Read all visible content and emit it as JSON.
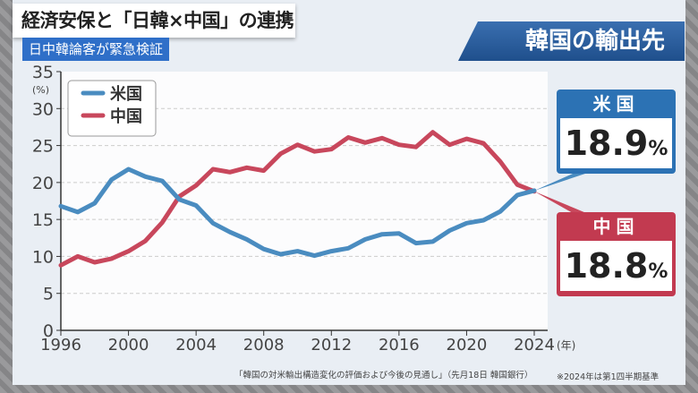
{
  "header": {
    "title": "経済安保と「日韓×中国」の連携",
    "subtitle": "日中韓論客が緊急検証",
    "panel_title": "韓国の輸出先"
  },
  "callouts": {
    "us": {
      "label": "米国",
      "value": "18.9",
      "unit": "%"
    },
    "china": {
      "label": "中国",
      "value": "18.8",
      "unit": "%"
    }
  },
  "footer": {
    "source": "「韓国の対米輸出構造変化の評価および今後の見通し」（先月18日 韓国銀行）",
    "note": "※2024年は第1四半期基準"
  },
  "colors": {
    "us": "#4a8cc0",
    "china": "#c8475c"
  },
  "chart_data": {
    "type": "line",
    "title": "韓国の輸出先",
    "ylabel": "(%)",
    "xlabel": "(年)",
    "ylim": [
      0,
      35
    ],
    "xlim": [
      1996,
      2024
    ],
    "yticks": [
      0,
      5,
      10,
      15,
      20,
      25,
      30,
      35
    ],
    "xticks": [
      1996,
      2000,
      2004,
      2008,
      2012,
      2016,
      2020,
      2024
    ],
    "legend": "top-left",
    "grid": true,
    "x": [
      1996,
      1997,
      1998,
      1999,
      2000,
      2001,
      2002,
      2003,
      2004,
      2005,
      2006,
      2007,
      2008,
      2009,
      2010,
      2011,
      2012,
      2013,
      2014,
      2015,
      2016,
      2017,
      2018,
      2019,
      2020,
      2021,
      2022,
      2023,
      2024
    ],
    "series": [
      {
        "name": "米国",
        "values": [
          16.8,
          16.0,
          17.2,
          20.4,
          21.8,
          20.8,
          20.2,
          17.7,
          16.9,
          14.5,
          13.3,
          12.3,
          11.0,
          10.3,
          10.7,
          10.1,
          10.7,
          11.1,
          12.3,
          13.0,
          13.1,
          11.8,
          12.0,
          13.5,
          14.5,
          14.9,
          16.1,
          18.3,
          18.9
        ]
      },
      {
        "name": "中国",
        "values": [
          8.8,
          10.0,
          9.2,
          9.7,
          10.7,
          12.1,
          14.6,
          18.1,
          19.6,
          21.8,
          21.4,
          22.0,
          21.6,
          23.9,
          25.1,
          24.2,
          24.5,
          26.1,
          25.4,
          26.0,
          25.1,
          24.8,
          26.8,
          25.1,
          25.9,
          25.3,
          22.8,
          19.7,
          18.8
        ]
      }
    ]
  }
}
